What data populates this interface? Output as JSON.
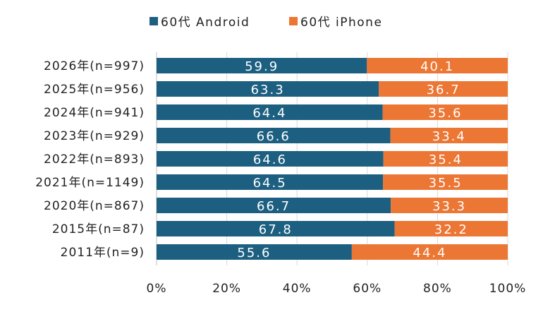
{
  "chart_data": {
    "type": "bar",
    "orientation": "horizontal",
    "stacked": true,
    "categories": [
      "2026年(n=997)",
      "2025年(n=956)",
      "2024年(n=941)",
      "2023年(n=929)",
      "2022年(n=893)",
      "2021年(n=1149)",
      "2020年(n=867)",
      "2015年(n=87)",
      "2011年(n=9)"
    ],
    "series": [
      {
        "name": "60代 Android",
        "color": "#1c5f80",
        "values": [
          59.9,
          63.3,
          64.4,
          66.6,
          64.6,
          64.5,
          66.7,
          67.8,
          55.6
        ]
      },
      {
        "name": "60代 iPhone",
        "color": "#ec7633",
        "values": [
          40.1,
          36.7,
          35.6,
          33.4,
          35.4,
          35.5,
          33.3,
          32.2,
          44.4
        ]
      }
    ],
    "xticks": [
      "0%",
      "20%",
      "40%",
      "60%",
      "80%",
      "100%"
    ],
    "xlim": [
      0,
      100
    ],
    "grid": true,
    "legend": "top-center",
    "title": "",
    "xlabel": "",
    "ylabel": ""
  }
}
